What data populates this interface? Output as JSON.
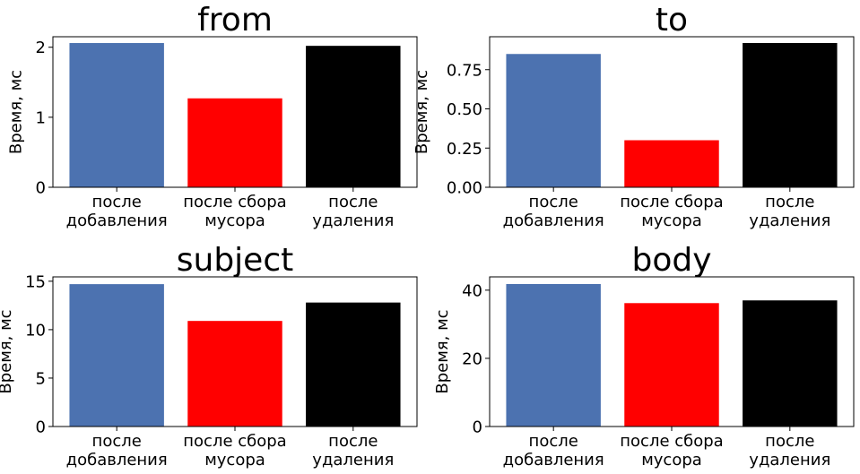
{
  "chart_data": [
    {
      "type": "bar",
      "title": "from",
      "ylabel": "Время, мс",
      "categories": [
        [
          "после",
          "добавления"
        ],
        [
          "после сбора",
          "мусора"
        ],
        [
          "после",
          "удаления"
        ]
      ],
      "values": [
        2.06,
        1.27,
        2.02
      ],
      "colors": [
        "#4c72b0",
        "#ff0000",
        "#000000"
      ],
      "ylim": [
        0,
        2.15
      ],
      "yticks": [
        0,
        1,
        2
      ],
      "ytick_labels": [
        "0",
        "1",
        "2"
      ],
      "grid": false
    },
    {
      "type": "bar",
      "title": "to",
      "ylabel": "Время, мс",
      "categories": [
        [
          "после",
          "добавления"
        ],
        [
          "после сбора",
          "мусора"
        ],
        [
          "после",
          "удаления"
        ]
      ],
      "values": [
        0.85,
        0.3,
        0.92
      ],
      "colors": [
        "#4c72b0",
        "#ff0000",
        "#000000"
      ],
      "ylim": [
        0,
        0.96
      ],
      "yticks": [
        0,
        0.25,
        0.5,
        0.75
      ],
      "ytick_labels": [
        "0.00",
        "0.25",
        "0.50",
        "0.75"
      ],
      "grid": false
    },
    {
      "type": "bar",
      "title": "subject",
      "ylabel": "Время, мс",
      "categories": [
        [
          "после",
          "добавления"
        ],
        [
          "после сбора",
          "мусора"
        ],
        [
          "после",
          "удаления"
        ]
      ],
      "values": [
        14.7,
        10.9,
        12.8
      ],
      "colors": [
        "#4c72b0",
        "#ff0000",
        "#000000"
      ],
      "ylim": [
        0,
        15.45
      ],
      "yticks": [
        0,
        5,
        10,
        15
      ],
      "ytick_labels": [
        "0",
        "5",
        "10",
        "15"
      ],
      "grid": false
    },
    {
      "type": "bar",
      "title": "body",
      "ylabel": "Время, мс",
      "categories": [
        [
          "после",
          "добавления"
        ],
        [
          "после сбора",
          "мусора"
        ],
        [
          "после",
          "удаления"
        ]
      ],
      "values": [
        41.8,
        36.2,
        37.0
      ],
      "colors": [
        "#4c72b0",
        "#ff0000",
        "#000000"
      ],
      "ylim": [
        0,
        43.9
      ],
      "yticks": [
        0,
        20,
        40
      ],
      "ytick_labels": [
        "0",
        "20",
        "40"
      ],
      "grid": false
    }
  ]
}
